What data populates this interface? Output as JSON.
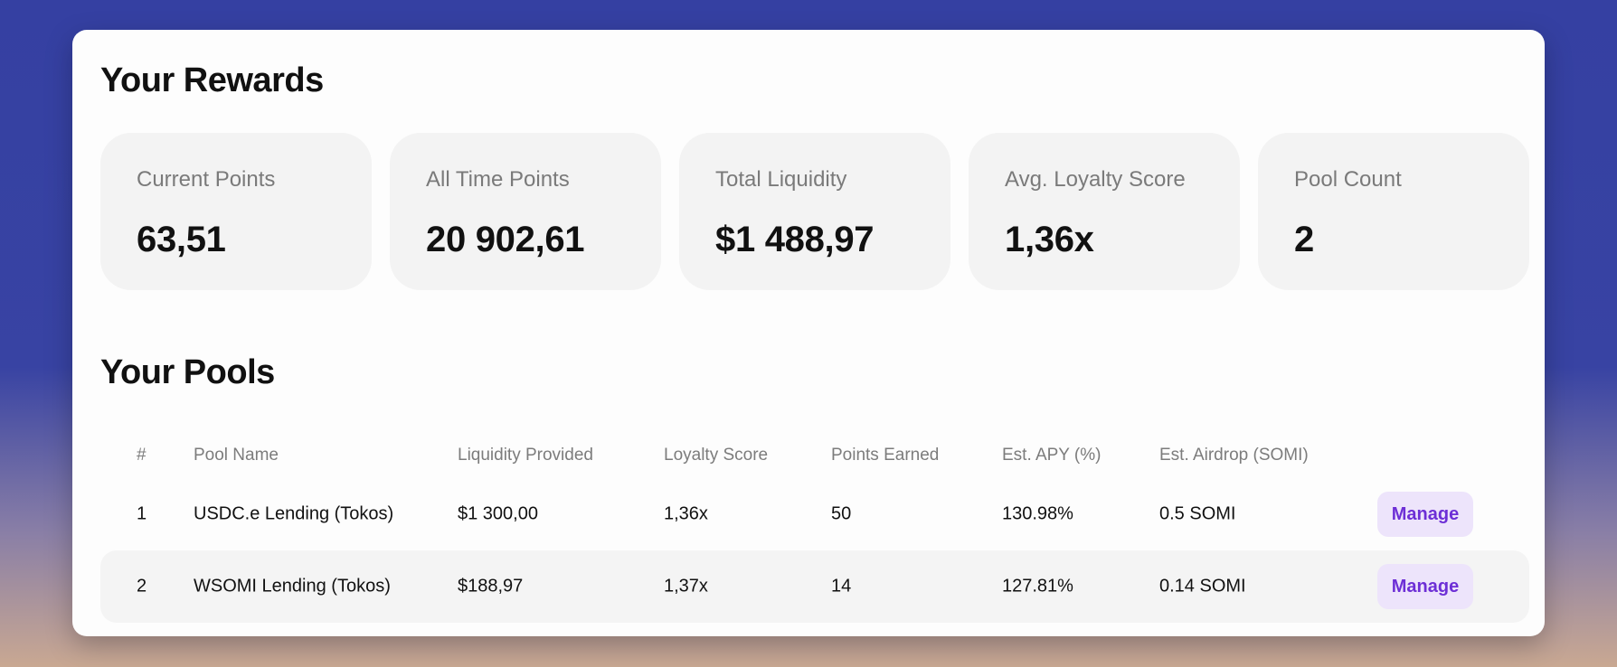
{
  "rewards": {
    "title": "Your Rewards",
    "stats": [
      {
        "label": "Current Points",
        "value": "63,51"
      },
      {
        "label": "All Time Points",
        "value": "20 902,61"
      },
      {
        "label": "Total Liquidity",
        "value": "$1 488,97"
      },
      {
        "label": "Avg. Loyalty Score",
        "value": "1,36x"
      },
      {
        "label": "Pool Count",
        "value": "2"
      }
    ]
  },
  "pools": {
    "title": "Your Pools",
    "columns": {
      "num": "#",
      "name": "Pool Name",
      "liquidity": "Liquidity Provided",
      "loyalty": "Loyalty Score",
      "points": "Points Earned",
      "apy": "Est. APY (%)",
      "airdrop": "Est. Airdrop (SOMI)"
    },
    "rows": [
      {
        "num": "1",
        "name": "USDC.e Lending (Tokos)",
        "liquidity": "$1 300,00",
        "loyalty": "1,36x",
        "points": "50",
        "apy": "130.98%",
        "airdrop": "0.5 SOMI",
        "action": "Manage"
      },
      {
        "num": "2",
        "name": "WSOMI Lending (Tokos)",
        "liquidity": "$188,97",
        "loyalty": "1,37x",
        "points": "14",
        "apy": "127.81%",
        "airdrop": "0.14 SOMI",
        "action": "Manage"
      }
    ]
  },
  "colors": {
    "background_top": "#3540a2",
    "background_bottom": "#c9a892",
    "card": "#fdfdfd",
    "stat_card": "#f3f3f3",
    "button_bg": "#ede4fb",
    "button_text": "#6d2fd6"
  }
}
